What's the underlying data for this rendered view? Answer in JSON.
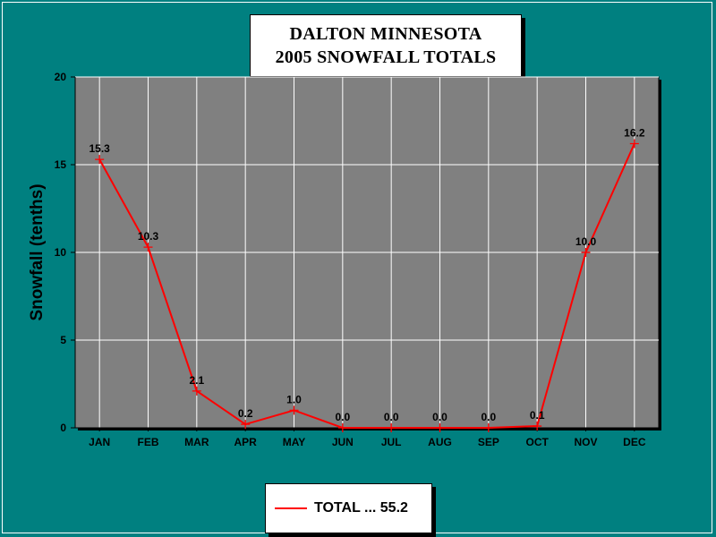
{
  "colors": {
    "background": "#008080",
    "plot_area": "#808080",
    "gridline": "#ffffff",
    "series_line": "#ff0000",
    "text": "#000000"
  },
  "chart_data": {
    "type": "line",
    "title": [
      "DALTON MINNESOTA",
      "2005 SNOWFALL TOTALS"
    ],
    "xlabel": "",
    "ylabel": "Snowfall (tenths)",
    "categories": [
      "JAN",
      "FEB",
      "MAR",
      "APR",
      "MAY",
      "JUN",
      "JUL",
      "AUG",
      "SEP",
      "OCT",
      "NOV",
      "DEC"
    ],
    "series": [
      {
        "name": "TOTAL ... 55.2",
        "values": [
          15.3,
          10.3,
          2.1,
          0.2,
          1.0,
          0.0,
          0.0,
          0.0,
          0.0,
          0.1,
          10.0,
          16.2
        ],
        "labels": [
          "15.3",
          "10.3",
          "2.1",
          "0.2",
          "1.0",
          "0.0",
          "0.0",
          "0.0",
          "0.0",
          "0.1",
          "10.0",
          "16.2"
        ],
        "color": "#ff0000",
        "marker": "plus"
      }
    ],
    "yticks": [
      "0",
      "5",
      "10",
      "15",
      "20"
    ],
    "ylim": [
      0,
      20
    ],
    "grid": true,
    "legend": "bottom-center"
  }
}
